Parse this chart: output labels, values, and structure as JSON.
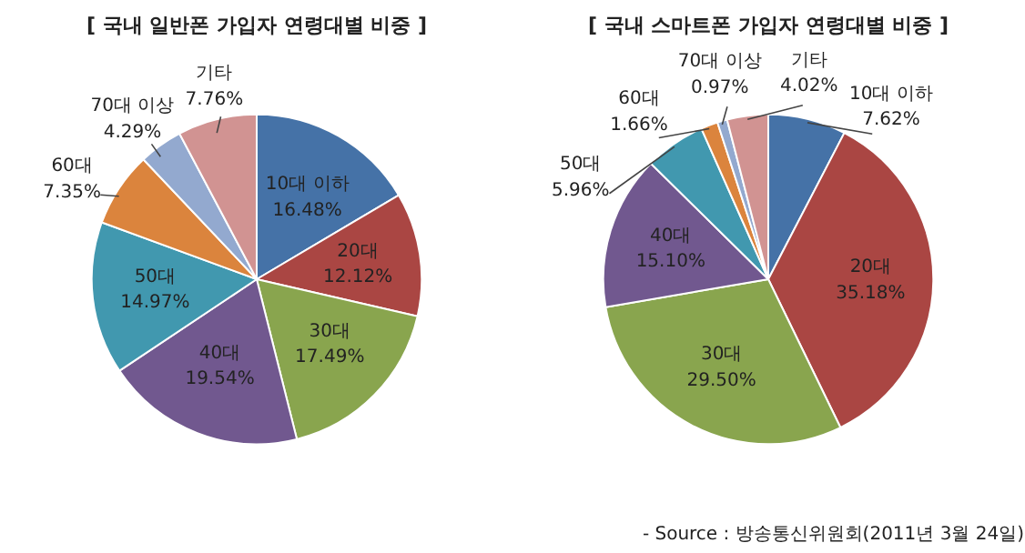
{
  "chart_data": [
    {
      "type": "pie",
      "title": "[ 국내 일반폰 가입자 연령대별 비중 ]",
      "categories": [
        "10대 이하",
        "20대",
        "30대",
        "40대",
        "50대",
        "60대",
        "70대 이상",
        "기타"
      ],
      "values": [
        16.48,
        12.12,
        17.49,
        19.54,
        14.97,
        7.35,
        4.29,
        7.76
      ],
      "colors": [
        "#4572a7",
        "#aa4643",
        "#89a54e",
        "#71588f",
        "#4198af",
        "#db843d",
        "#93a9cf",
        "#d19392"
      ],
      "value_labels": [
        "16.48%",
        "12.12%",
        "17.49%",
        "19.54%",
        "14.97%",
        "7.35%",
        "4.29%",
        "7.76%"
      ]
    },
    {
      "type": "pie",
      "title": "[ 국내 스마트폰 가입자 연령대별 비중 ]",
      "categories": [
        "10대 이하",
        "20대",
        "30대",
        "40대",
        "50대",
        "60대",
        "70대 이상",
        "기타"
      ],
      "values": [
        7.62,
        35.18,
        29.5,
        15.1,
        5.96,
        1.66,
        0.97,
        4.02
      ],
      "colors": [
        "#4572a7",
        "#aa4643",
        "#89a54e",
        "#71588f",
        "#4198af",
        "#db843d",
        "#93a9cf",
        "#d19392"
      ],
      "value_labels": [
        "7.62%",
        "35.18%",
        "29.50%",
        "15.10%",
        "5.96%",
        "1.66%",
        "0.97%",
        "4.02%"
      ],
      "annotations": [
        "- Source : 방송통신위원회(2011년 3월 24일)"
      ]
    }
  ]
}
